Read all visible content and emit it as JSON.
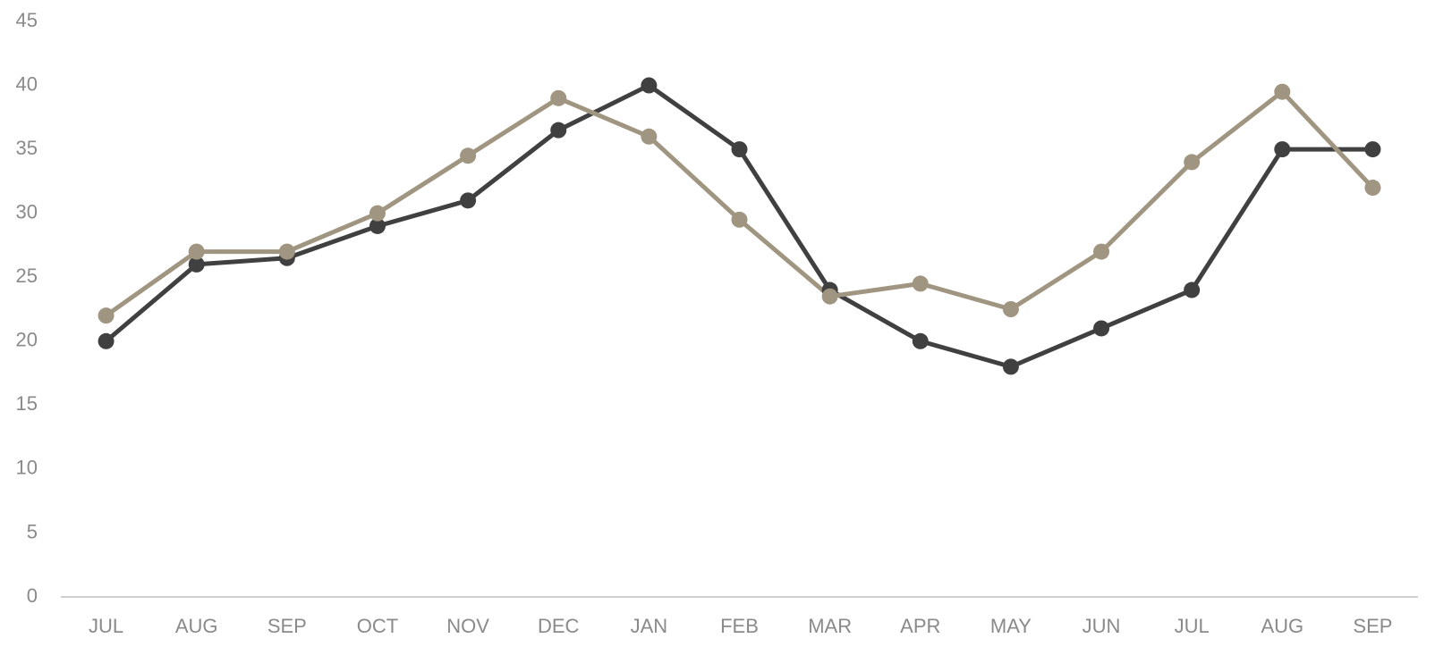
{
  "chart_data": {
    "type": "line",
    "categories": [
      "JUL",
      "AUG",
      "SEP",
      "OCT",
      "NOV",
      "DEC",
      "JAN",
      "FEB",
      "MAR",
      "APR",
      "MAY",
      "JUN",
      "JUL",
      "AUG",
      "SEP"
    ],
    "series": [
      {
        "color": "#404040",
        "values": [
          20,
          26,
          26.5,
          29,
          31,
          36.5,
          40,
          35,
          24,
          20,
          18,
          21,
          24,
          35,
          35
        ]
      },
      {
        "color": "#a09580",
        "values": [
          22,
          27,
          27,
          30,
          34.5,
          39,
          36,
          29.5,
          23.5,
          24.5,
          22.5,
          27,
          34,
          39.5,
          32
        ]
      }
    ],
    "ylim": [
      0,
      45
    ],
    "yticks": [
      0,
      5,
      10,
      15,
      20,
      25,
      30,
      35,
      40,
      45
    ],
    "grid": false
  }
}
